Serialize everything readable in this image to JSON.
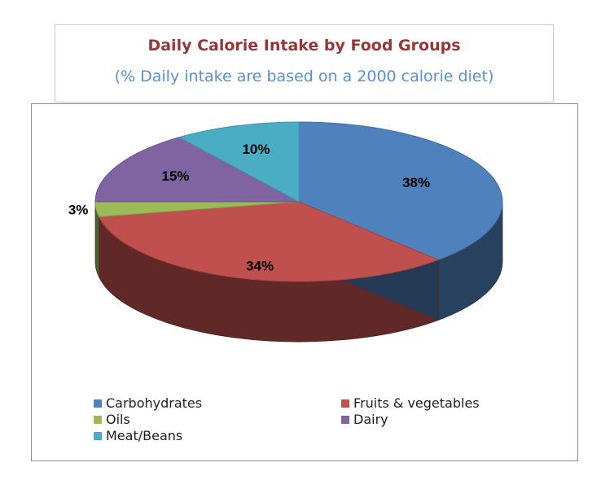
{
  "chart_data": {
    "type": "pie",
    "title": "Daily Calorie Intake by Food Groups",
    "subtitle": "(% Daily intake are based on a 2000 calorie diet)",
    "slices": [
      {
        "label": "Carbohydrates",
        "value": 38,
        "data_label": "38%",
        "color": "#4f81bd"
      },
      {
        "label": "Fruits & vegetables",
        "value": 34,
        "data_label": "34%",
        "color": "#c0504d"
      },
      {
        "label": "Oils",
        "value": 3,
        "data_label": "3%",
        "color": "#9bbb59"
      },
      {
        "label": "Dairy",
        "value": 15,
        "data_label": "15%",
        "color": "#8064a2"
      },
      {
        "label": "Meat/Beans",
        "value": 10,
        "data_label": "10%",
        "color": "#4bacc6"
      }
    ],
    "legend_placement": "bottom",
    "style": "3d"
  }
}
